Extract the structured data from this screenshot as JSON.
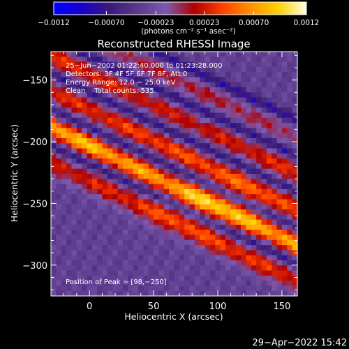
{
  "chart_data": {
    "type": "heatmap",
    "title": "Reconstructed RHESSI Image",
    "xlabel": "Heliocentric X (arcsec)",
    "ylabel": "Heliocentric Y (arcsec)",
    "xlim": [
      -30,
      162
    ],
    "ylim": [
      -325,
      -127
    ],
    "x_ticks": [
      0,
      50,
      100,
      150
    ],
    "x_tick_labels": [
      "0",
      "50",
      "100",
      "150"
    ],
    "y_ticks": [
      -150,
      -200,
      -250,
      -300
    ],
    "y_tick_labels": [
      "−150",
      "−200",
      "−250",
      "−300"
    ],
    "colorbar": {
      "label": "(photons cm⁻² s⁻¹ asec⁻²)",
      "range": [
        -0.0012,
        0.0012
      ],
      "ticks": [
        -0.0012,
        -0.0007,
        -0.00023,
        0.00023,
        0.0007,
        0.0012
      ],
      "tick_labels": [
        "−0.0012",
        "−0.00070",
        "−0.00023",
        "0.00023",
        "0.00070",
        "0.0012"
      ],
      "colors": [
        "#0000ff",
        "#1a00cc",
        "#3a1a7a",
        "#5a3a8a",
        "#7d5ab0",
        "#b00000",
        "#ff4000",
        "#ff9000",
        "#ffd000",
        "#ffffe0"
      ]
    },
    "annotations": [
      "25−Jun−2002 01:22:40.000 to 01:23:28.000",
      "Detectors: 3F 4F 5F 6F 7F 8F, Att 0",
      "Energy Range: 12.0 − 25.0 keV",
      "Clean    Total counts: 535.",
      "Position of Peak = [98,−250]"
    ],
    "peak": [
      98,
      -250
    ],
    "stripes": [
      {
        "offset": -232,
        "intensity": 0.6
      },
      {
        "offset": -203,
        "intensity": 1.0
      },
      {
        "offset": -174,
        "intensity": 0.65
      },
      {
        "offset": -145,
        "intensity": 0.55
      },
      {
        "offset": -116,
        "intensity": 0.35
      }
    ]
  },
  "footer": {
    "timestamp": "29−Apr−2022 15:42"
  }
}
